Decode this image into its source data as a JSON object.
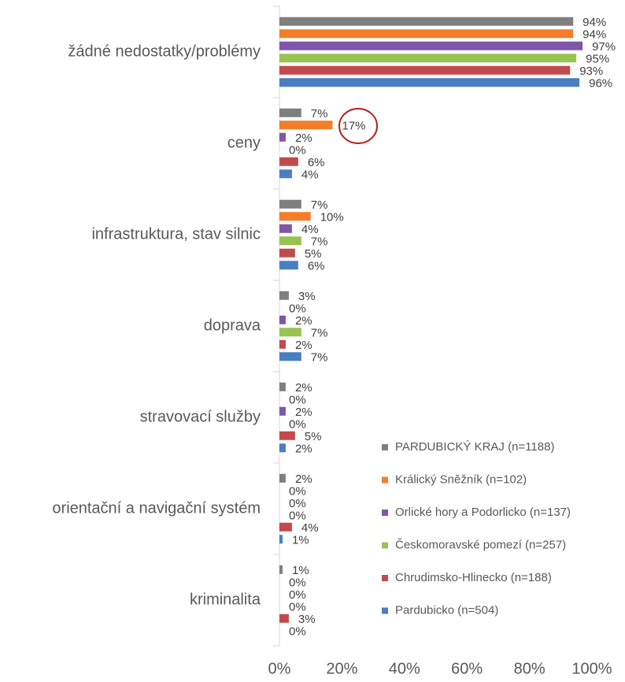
{
  "chart_data": {
    "type": "bar",
    "orientation": "horizontal",
    "categories": [
      "žádné nedostatky/problémy",
      "ceny",
      "infrastruktura, stav silnic",
      "doprava",
      "stravovací služby",
      "orientační a navigační systém",
      "kriminalita"
    ],
    "series": [
      {
        "name": "PARDUBICKÝ KRAJ (n=1188)",
        "color": "#7f7f7f",
        "values": [
          94,
          7,
          7,
          3,
          2,
          2,
          1
        ],
        "value_labels": [
          "94%",
          "7%",
          "7%",
          "3%",
          "2%",
          "2%",
          "1%"
        ]
      },
      {
        "name": "Králický Sněžník (n=102)",
        "color": "#f47d2a",
        "values": [
          94,
          17,
          10,
          0,
          0,
          0,
          0
        ],
        "value_labels": [
          "94%",
          "17%",
          "10%",
          "0%",
          "0%",
          "0%",
          "0%"
        ]
      },
      {
        "name": "Orlické hory a Podorlicko (n=137)",
        "color": "#7f56a8",
        "values": [
          97,
          2,
          4,
          2,
          2,
          0,
          0
        ],
        "value_labels": [
          "97%",
          "2%",
          "4%",
          "2%",
          "2%",
          "0%",
          "0%"
        ]
      },
      {
        "name": "Českomoravské pomezí (n=257)",
        "color": "#98c352",
        "values": [
          95,
          0,
          7,
          7,
          0,
          0,
          0
        ],
        "value_labels": [
          "95%",
          "0%",
          "7%",
          "7%",
          "0%",
          "0%",
          "0%"
        ]
      },
      {
        "name": "Chrudimsko-Hlinecko (n=188)",
        "color": "#c34a4c",
        "values": [
          93,
          6,
          5,
          2,
          5,
          4,
          3
        ],
        "value_labels": [
          "93%",
          "6%",
          "5%",
          "2%",
          "5%",
          "4%",
          "3%"
        ]
      },
      {
        "name": "Pardubicko (n=504)",
        "color": "#4a7ec3",
        "values": [
          96,
          4,
          6,
          7,
          2,
          1,
          0
        ],
        "value_labels": [
          "96%",
          "4%",
          "6%",
          "7%",
          "2%",
          "1%",
          "0%"
        ]
      }
    ],
    "xlim": [
      0,
      100
    ],
    "xticks": [
      {
        "value": 0,
        "label": "0%"
      },
      {
        "value": 20,
        "label": "20%"
      },
      {
        "value": 40,
        "label": "40%"
      },
      {
        "value": 60,
        "label": "60%"
      },
      {
        "value": 80,
        "label": "80%"
      },
      {
        "value": 100,
        "label": "100%"
      }
    ],
    "grid": false,
    "legend": "lower right"
  }
}
